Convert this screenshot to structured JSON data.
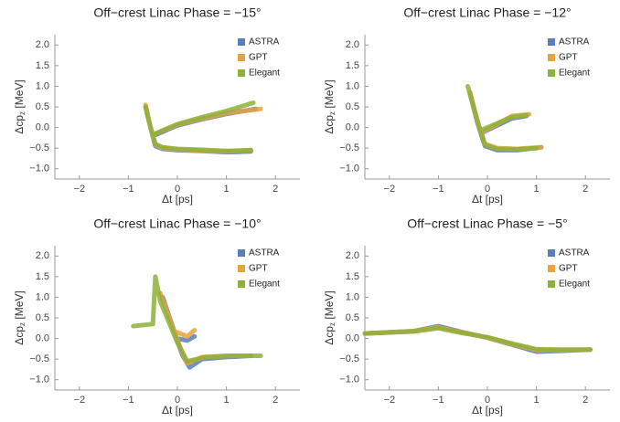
{
  "chart_data": [
    {
      "type": "line",
      "title": "Off−crest Linac Phase = −15°",
      "xlabel": "Δt [ps]",
      "ylabel": "Δcp",
      "ylabel_sub": "z",
      "ylabel_unit": "[MeV]",
      "xlim": [
        -2.5,
        2.5
      ],
      "ylim": [
        -1.25,
        2.25
      ],
      "xticks": [
        {
          "value": -2,
          "label": "−2"
        },
        {
          "value": -1,
          "label": "−1"
        },
        0,
        1,
        2
      ],
      "yticks": [
        {
          "value": -1,
          "label": "−1.0"
        },
        {
          "value": -0.5,
          "label": "−0.5"
        },
        {
          "value": 0,
          "label": "0.0"
        },
        {
          "value": 0.5,
          "label": "0.5"
        },
        {
          "value": 1,
          "label": "1.0"
        },
        {
          "value": 1.5,
          "label": "1.5"
        },
        {
          "value": 2,
          "label": "2.0"
        }
      ],
      "legend": "top-right",
      "series": [
        {
          "name": "ASTRA",
          "color": "#5b7db8",
          "x": [
            -0.65,
            -0.55,
            -0.45,
            -0.3,
            0,
            0.5,
            1.0,
            1.5,
            null,
            -0.45,
            0,
            0.5,
            1.0,
            1.6
          ],
          "values": [
            0.5,
            0,
            -0.45,
            -0.52,
            -0.55,
            -0.57,
            -0.6,
            -0.58,
            null,
            -0.18,
            0.05,
            0.2,
            0.33,
            0.45
          ]
        },
        {
          "name": "GPT",
          "color": "#e8a33d",
          "x": [
            -0.65,
            -0.55,
            -0.45,
            -0.3,
            0,
            0.5,
            1.0,
            1.5,
            null,
            -0.45,
            0,
            0.5,
            1.0,
            1.7
          ],
          "values": [
            0.55,
            0,
            -0.42,
            -0.5,
            -0.53,
            -0.56,
            -0.58,
            -0.55,
            null,
            -0.15,
            0.07,
            0.22,
            0.35,
            0.45
          ]
        },
        {
          "name": "Elegant",
          "color": "#8db13a",
          "x": [
            -0.65,
            -0.55,
            -0.45,
            -0.3,
            0,
            0.5,
            1.0,
            1.5,
            null,
            -0.45,
            0,
            0.5,
            1.0,
            1.55
          ],
          "values": [
            0.5,
            0.02,
            -0.4,
            -0.48,
            -0.52,
            -0.54,
            -0.57,
            -0.55,
            null,
            -0.15,
            0.08,
            0.25,
            0.4,
            0.6
          ]
        }
      ]
    },
    {
      "type": "line",
      "title": "Off−crest Linac Phase = −12°",
      "xlabel": "Δt [ps]",
      "ylabel": "Δcp",
      "ylabel_sub": "z",
      "ylabel_unit": "[MeV]",
      "xlim": [
        -2.5,
        2.5
      ],
      "ylim": [
        -1.25,
        2.25
      ],
      "xticks": [
        {
          "value": -2,
          "label": "−2"
        },
        {
          "value": -1,
          "label": "−1"
        },
        0,
        1,
        2
      ],
      "yticks": [
        {
          "value": -1,
          "label": "−1.0"
        },
        {
          "value": -0.5,
          "label": "−0.5"
        },
        {
          "value": 0,
          "label": "0.0"
        },
        {
          "value": 0.5,
          "label": "0.5"
        },
        {
          "value": 1,
          "label": "1.0"
        },
        {
          "value": 1.5,
          "label": "1.5"
        },
        {
          "value": 2,
          "label": "2.0"
        }
      ],
      "legend": "top-right",
      "series": [
        {
          "name": "ASTRA",
          "color": "#5b7db8",
          "x": [
            -0.35,
            -0.2,
            -0.05,
            0.2,
            0.6,
            1.1,
            null,
            -0.1,
            0.2,
            0.5,
            0.8
          ],
          "values": [
            0.8,
            0.1,
            -0.45,
            -0.55,
            -0.55,
            -0.48,
            null,
            -0.12,
            0.05,
            0.22,
            0.28
          ]
        },
        {
          "name": "GPT",
          "color": "#e8a33d",
          "x": [
            -0.35,
            -0.2,
            -0.05,
            0.2,
            0.6,
            1.1,
            null,
            -0.1,
            0.2,
            0.5,
            0.85
          ],
          "values": [
            0.85,
            0.12,
            -0.4,
            -0.5,
            -0.52,
            -0.48,
            null,
            -0.1,
            0.08,
            0.28,
            0.32
          ]
        },
        {
          "name": "Elegant",
          "color": "#8db13a",
          "x": [
            -0.4,
            -0.2,
            -0.05,
            0.2,
            0.6,
            1.0,
            null,
            -0.1,
            0.2,
            0.5,
            0.8
          ],
          "values": [
            1.0,
            0.15,
            -0.42,
            -0.52,
            -0.53,
            -0.5,
            null,
            -0.05,
            0.1,
            0.25,
            0.3
          ]
        }
      ]
    },
    {
      "type": "line",
      "title": "Off−crest Linac Phase = −10°",
      "xlabel": "Δt [ps]",
      "ylabel": "Δcp",
      "ylabel_sub": "z",
      "ylabel_unit": "[MeV]",
      "xlim": [
        -2.5,
        2.5
      ],
      "ylim": [
        -1.25,
        2.25
      ],
      "xticks": [
        {
          "value": -2,
          "label": "−2"
        },
        {
          "value": -1,
          "label": "−1"
        },
        0,
        1,
        2
      ],
      "yticks": [
        {
          "value": -1,
          "label": "−1.0"
        },
        {
          "value": -0.5,
          "label": "−0.5"
        },
        {
          "value": 0,
          "label": "0.0"
        },
        {
          "value": 0.5,
          "label": "0.5"
        },
        {
          "value": 1,
          "label": "1.0"
        },
        {
          "value": 1.5,
          "label": "1.5"
        },
        {
          "value": 2,
          "label": "2.0"
        }
      ],
      "legend": "top-right",
      "series": [
        {
          "name": "ASTRA",
          "color": "#5b7db8",
          "x": [
            -0.3,
            -0.1,
            0.1,
            0.25,
            0.5,
            1.0,
            1.5,
            null,
            0.0,
            0.2,
            0.35
          ],
          "values": [
            1.0,
            0.3,
            -0.4,
            -0.7,
            -0.5,
            -0.45,
            -0.42,
            null,
            0.0,
            -0.05,
            0.05
          ]
        },
        {
          "name": "GPT",
          "color": "#e8a33d",
          "x": [
            -0.35,
            -0.1,
            0.1,
            0.2,
            0.5,
            1.0,
            1.5,
            null,
            0.0,
            0.2,
            0.35
          ],
          "values": [
            1.1,
            0.3,
            -0.35,
            -0.6,
            -0.45,
            -0.42,
            -0.42,
            null,
            0.15,
            0.05,
            0.2
          ]
        },
        {
          "name": "Elegant",
          "color": "#8db13a",
          "x": [
            -0.9,
            -0.5,
            -0.45,
            -0.35,
            0,
            0.2,
            0.6,
            1.2,
            1.7
          ],
          "values": [
            0.3,
            0.35,
            1.5,
            0.9,
            -0.1,
            -0.55,
            -0.45,
            -0.42,
            -0.42
          ]
        }
      ]
    },
    {
      "type": "line",
      "title": "Off−crest Linac Phase = −5°",
      "xlabel": "Δt [ps]",
      "ylabel": "Δcp",
      "ylabel_sub": "z",
      "ylabel_unit": "[MeV]",
      "xlim": [
        -2.5,
        2.5
      ],
      "ylim": [
        -1.25,
        2.25
      ],
      "xticks": [
        {
          "value": -2,
          "label": "−2"
        },
        {
          "value": -1,
          "label": "−1"
        },
        0,
        1,
        2
      ],
      "yticks": [
        {
          "value": -1,
          "label": "−1.0"
        },
        {
          "value": -0.5,
          "label": "−0.5"
        },
        {
          "value": 0,
          "label": "0.0"
        },
        {
          "value": 0.5,
          "label": "0.5"
        },
        {
          "value": 1,
          "label": "1.0"
        },
        {
          "value": 1.5,
          "label": "1.5"
        },
        {
          "value": 2,
          "label": "2.0"
        }
      ],
      "legend": "top-right",
      "series": [
        {
          "name": "ASTRA",
          "color": "#5b7db8",
          "x": [
            -2.5,
            -1.5,
            -1.0,
            -0.5,
            0,
            0.5,
            1.0,
            1.5,
            2.1
          ],
          "values": [
            0.12,
            0.18,
            0.3,
            0.15,
            0.02,
            -0.15,
            -0.32,
            -0.3,
            -0.27
          ]
        },
        {
          "name": "GPT",
          "color": "#e8a33d",
          "x": [
            -2.5,
            -1.5,
            -1.0,
            -0.5,
            0,
            0.5,
            1.0,
            1.5,
            2.1
          ],
          "values": [
            0.12,
            0.18,
            0.27,
            0.14,
            0.02,
            -0.14,
            -0.28,
            -0.28,
            -0.27
          ]
        },
        {
          "name": "Elegant",
          "color": "#8db13a",
          "x": [
            -2.5,
            -1.5,
            -1.0,
            -0.5,
            0,
            0.5,
            1.0,
            1.5,
            2.1
          ],
          "values": [
            0.12,
            0.17,
            0.25,
            0.13,
            0.03,
            -0.12,
            -0.26,
            -0.27,
            -0.27
          ]
        }
      ]
    }
  ]
}
